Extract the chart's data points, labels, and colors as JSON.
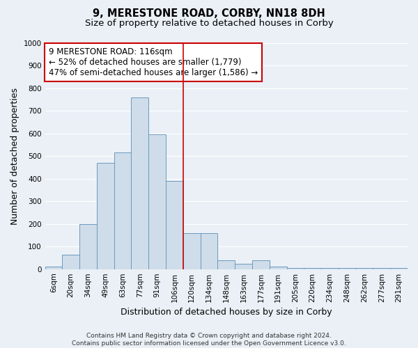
{
  "title": "9, MERESTONE ROAD, CORBY, NN18 8DH",
  "subtitle": "Size of property relative to detached houses in Corby",
  "xlabel": "Distribution of detached houses by size in Corby",
  "ylabel": "Number of detached properties",
  "bar_labels": [
    "6sqm",
    "20sqm",
    "34sqm",
    "49sqm",
    "63sqm",
    "77sqm",
    "91sqm",
    "106sqm",
    "120sqm",
    "134sqm",
    "148sqm",
    "163sqm",
    "177sqm",
    "191sqm",
    "205sqm",
    "220sqm",
    "234sqm",
    "248sqm",
    "262sqm",
    "277sqm",
    "291sqm"
  ],
  "bar_values": [
    12,
    65,
    200,
    470,
    515,
    760,
    595,
    390,
    160,
    160,
    40,
    25,
    40,
    10,
    5,
    5,
    5,
    5,
    5,
    5,
    5
  ],
  "bar_color": "#cfdce9",
  "bar_edge_color": "#6b9abf",
  "vline_pos": 7.5,
  "vline_color": "#cc0000",
  "annotation_text": "9 MERESTONE ROAD: 116sqm\n← 52% of detached houses are smaller (1,779)\n47% of semi-detached houses are larger (1,586) →",
  "annotation_box_facecolor": "#ffffff",
  "annotation_box_edgecolor": "#cc0000",
  "ylim": [
    0,
    1000
  ],
  "yticks": [
    0,
    100,
    200,
    300,
    400,
    500,
    600,
    700,
    800,
    900,
    1000
  ],
  "bg_color": "#eaf0f6",
  "grid_color": "#ffffff",
  "title_fontsize": 10.5,
  "subtitle_fontsize": 9.5,
  "axis_label_fontsize": 9,
  "tick_fontsize": 7.5,
  "annotation_fontsize": 8.5,
  "footnote_fontsize": 6.5,
  "footnote": "Contains HM Land Registry data © Crown copyright and database right 2024.\nContains public sector information licensed under the Open Government Licence v3.0."
}
